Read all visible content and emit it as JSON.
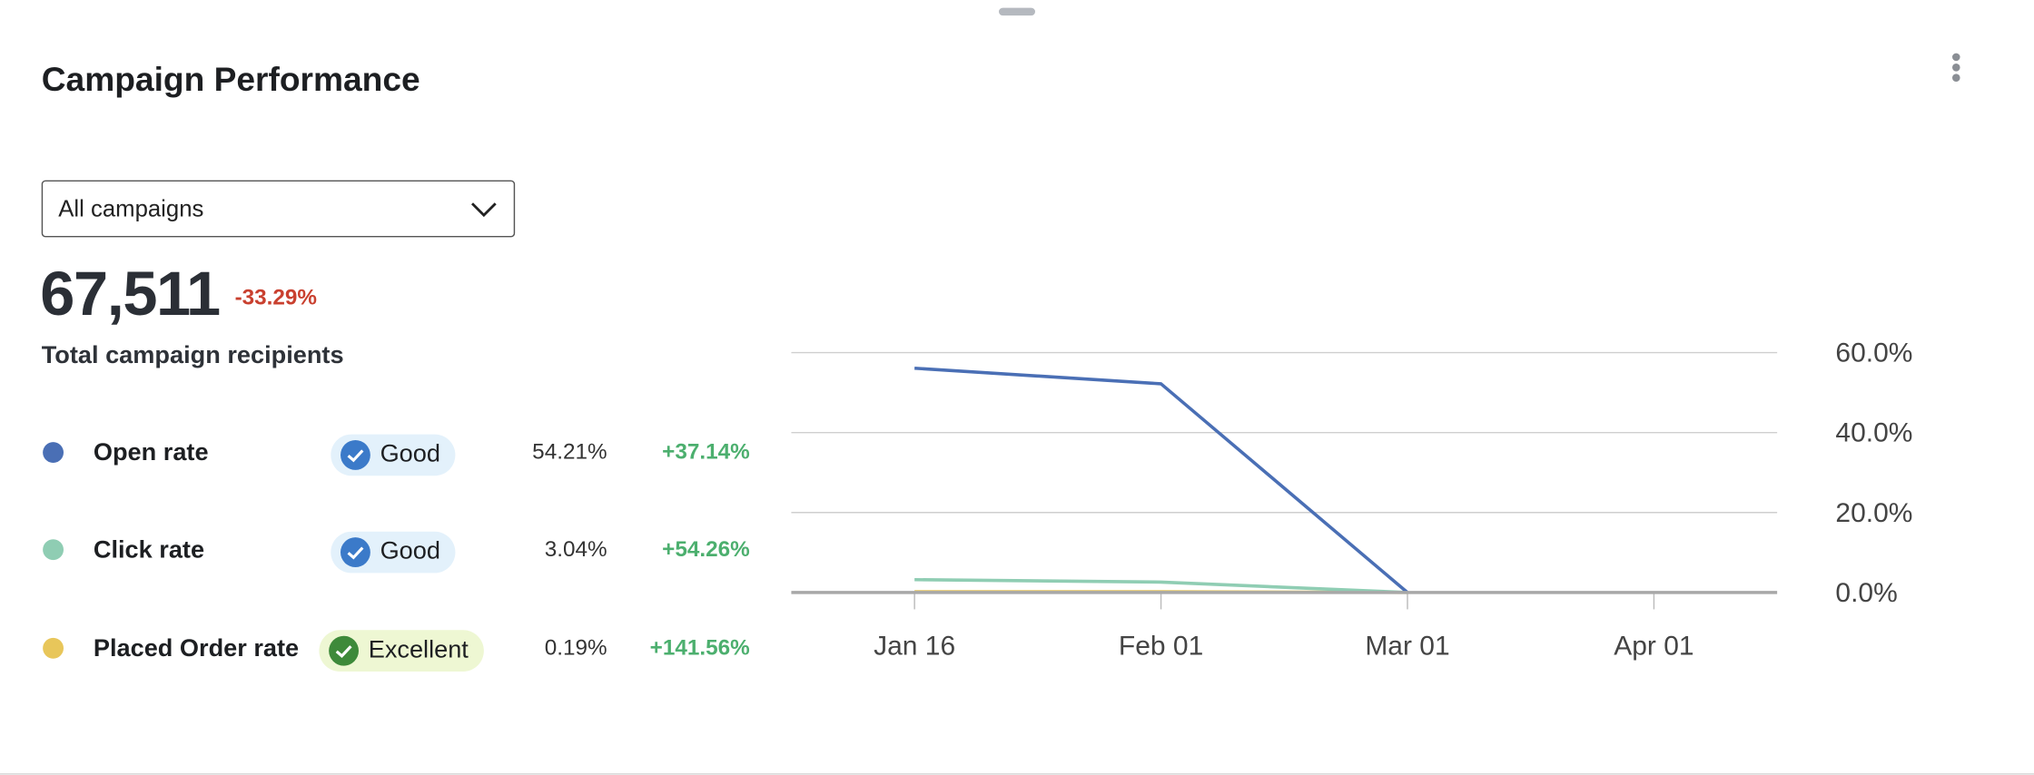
{
  "header": {
    "title": "Campaign Performance"
  },
  "dropdown": {
    "selected": "All campaigns"
  },
  "kpi": {
    "value": "67,511",
    "change": "-33.29%",
    "label": "Total campaign recipients"
  },
  "metrics": [
    {
      "badge": "Good",
      "value": "54.21%",
      "change": "+37.14%"
    },
    {
      "badge": "Good",
      "value": "3.04%",
      "change": "+54.26%"
    },
    {
      "badge": "Excellent",
      "value": "0.19%",
      "change": "+141.56%"
    }
  ],
  "chart_data": {
    "type": "line",
    "categories": [
      "Jan 16",
      "Feb 01",
      "Mar 01",
      "Apr 01"
    ],
    "series": [
      {
        "name": "Open rate",
        "color": "#4a6fb5",
        "values": [
          56.1,
          52.2,
          0,
          null
        ]
      },
      {
        "name": "Click rate",
        "color": "#8fcdb3",
        "values": [
          3.2,
          2.6,
          0,
          null
        ]
      },
      {
        "name": "Placed Order rate",
        "color": "#e8c65a",
        "values": [
          0.2,
          0.2,
          0,
          null
        ]
      }
    ],
    "ylim": [
      0,
      60
    ],
    "yticks": [
      {
        "value": 0,
        "label": "0.0%"
      },
      {
        "value": 20,
        "label": "20.0%"
      },
      {
        "value": 40,
        "label": "40.0%"
      },
      {
        "value": 60,
        "label": "60.0%"
      }
    ],
    "grid": true
  }
}
